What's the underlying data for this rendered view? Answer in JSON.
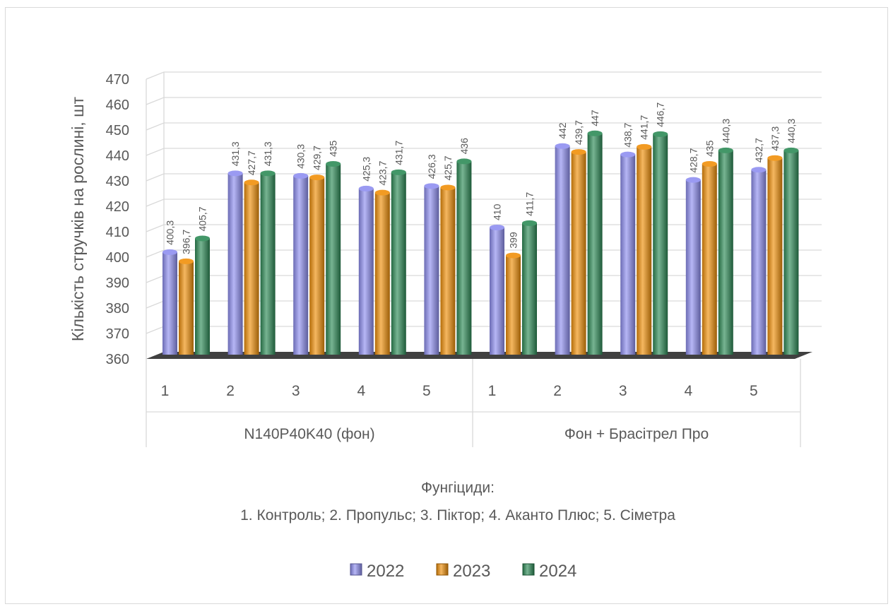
{
  "chart_data": {
    "type": "bar",
    "ylabel": "Кількість стручків на рослині, шт",
    "ylim": [
      360,
      470
    ],
    "yticks": [
      "360",
      "370",
      "380",
      "390",
      "400",
      "410",
      "420",
      "430",
      "440",
      "450",
      "460",
      "470"
    ],
    "groups": [
      {
        "label": "N140P40K40 (фон)",
        "categories": [
          "1",
          "2",
          "3",
          "4",
          "5"
        ]
      },
      {
        "label": "Фон + Брасітрел Про",
        "categories": [
          "1",
          "2",
          "3",
          "4",
          "5"
        ]
      }
    ],
    "series": [
      {
        "name": "2022",
        "color": "#8f8ff0",
        "values": [
          400.3,
          431.3,
          430.3,
          425.3,
          426.3,
          410,
          442,
          438.7,
          428.7,
          432.7
        ],
        "labels": [
          "400,3",
          "431,3",
          "430,3",
          "425,3",
          "426,3",
          "410",
          "442",
          "438,7",
          "428,7",
          "432,7"
        ]
      },
      {
        "name": "2023",
        "color": "#f0900a",
        "values": [
          396.7,
          427.7,
          429.7,
          423.7,
          425.7,
          399,
          439.7,
          441.7,
          435,
          437.3
        ],
        "labels": [
          "396,7",
          "427,7",
          "429,7",
          "423,7",
          "425,7",
          "399",
          "439,7",
          "441,7",
          "435",
          "437,3"
        ]
      },
      {
        "name": "2024",
        "color": "#2e8b57",
        "values": [
          405.7,
          431.3,
          435,
          431.7,
          436,
          411.7,
          447,
          446.7,
          440.3,
          440.3
        ],
        "labels": [
          "405,7",
          "431,3",
          "435",
          "431,7",
          "436",
          "411,7",
          "447",
          "446,7",
          "440,3",
          "440,3"
        ]
      }
    ],
    "grid": true,
    "legend": "bottom"
  },
  "caption": {
    "line1": "Фунгіциди:",
    "line2": "1. Контроль; 2. Пропульс; 3. Піктор; 4. Аканто Плюс; 5. Сіметра"
  }
}
